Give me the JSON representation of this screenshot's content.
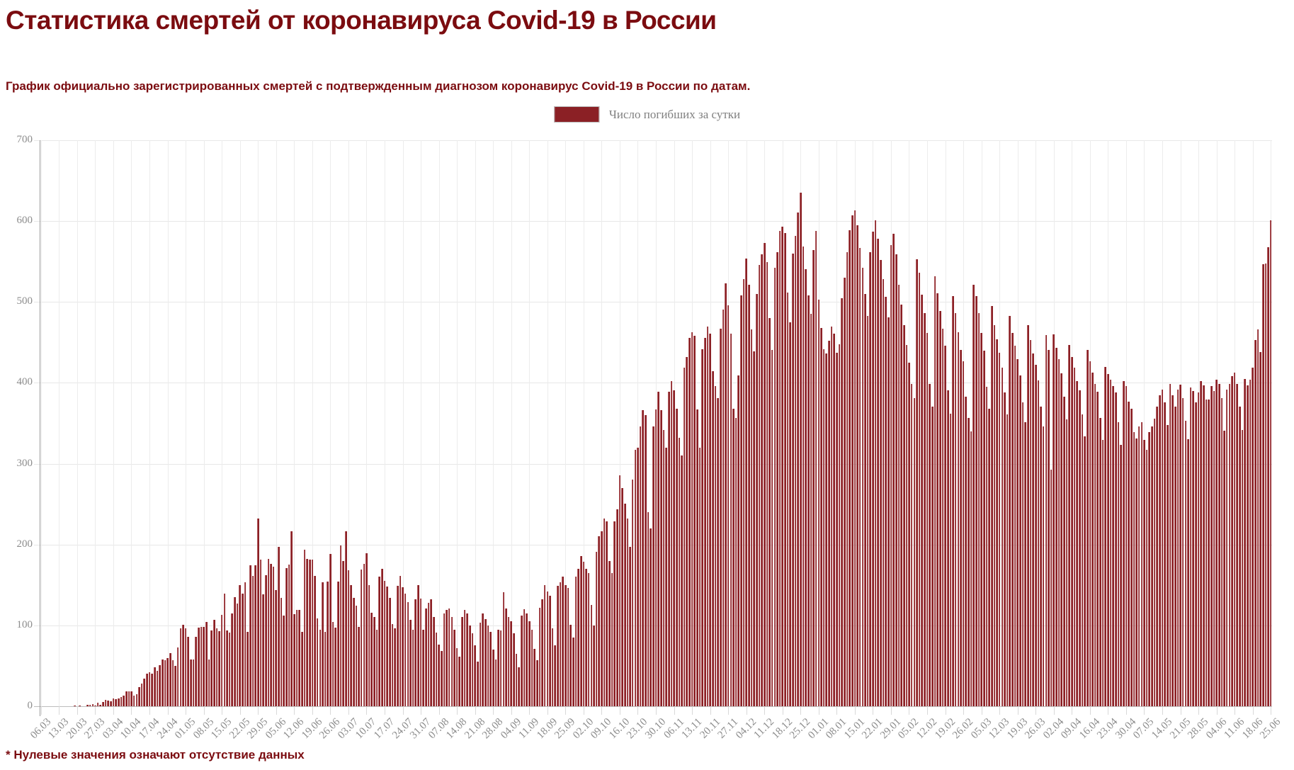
{
  "page": {
    "title": "Статистика смертей от коронавируса Covid-19 в России",
    "subtitle": "График официально зарегистрированных смертей с подтвержденным диагнозом коронавирус Covid-19 в России по датам.",
    "footnote": "* Нулевые значения означают отсутствие данных"
  },
  "legend": {
    "label": "Число погибших за сутки"
  },
  "colors": {
    "accent_text": "#7b0c10",
    "bar": "#8b2025",
    "bar_highlight": "#b05a5e",
    "axis_text": "#8c8c8c",
    "legend_text": "#808080",
    "grid": "#e7e7e7",
    "axis_line": "#9a9a9a",
    "zero_line": "#bdbdbd"
  },
  "chart_data": {
    "type": "bar",
    "title": "Статистика смертей от коронавируса Covid-19 в России",
    "series_name": "Число погибших за сутки",
    "legend_position": "top-center",
    "grid": true,
    "start_date": "06.03.2020",
    "end_date": "25.06.2021",
    "ylim": [
      0,
      700
    ],
    "y_ticks": [
      0,
      100,
      200,
      300,
      400,
      500,
      600,
      700
    ],
    "x_tick_interval_days": 7,
    "x_tick_labels": [
      "06.03",
      "13.03",
      "20.03",
      "27.03",
      "03.04",
      "10.04",
      "17.04",
      "24.04",
      "01.05",
      "08.05",
      "15.05",
      "22.05",
      "29.05",
      "05.06",
      "12.06",
      "19.06",
      "26.06",
      "03.07",
      "10.07",
      "17.07",
      "24.07",
      "31.07",
      "07.08",
      "14.08",
      "21.08",
      "28.08",
      "04.09",
      "11.09",
      "18.09",
      "25.09",
      "02.10",
      "09.10",
      "16.10",
      "23.10",
      "30.10",
      "06.11",
      "13.11",
      "20.11",
      "27.11",
      "04.12",
      "11.12",
      "18.12",
      "25.12",
      "01.01",
      "08.01",
      "15.01",
      "22.01",
      "29.01",
      "05.02",
      "12.02",
      "19.02",
      "26.02",
      "05.03",
      "12.03",
      "19.03",
      "26.03",
      "02.04",
      "09.04",
      "16.04",
      "23.04",
      "30.04",
      "07.05",
      "14.05",
      "21.05",
      "28.05",
      "04.06",
      "11.06",
      "18.06",
      "25.06"
    ],
    "values": [
      0,
      0,
      0,
      0,
      0,
      0,
      0,
      0,
      0,
      0,
      0,
      0,
      0,
      1,
      0,
      1,
      0,
      0,
      2,
      2,
      3,
      1,
      4,
      2,
      5,
      8,
      7,
      6,
      10,
      9,
      10,
      11,
      13,
      18,
      18,
      18,
      13,
      15,
      24,
      28,
      34,
      40,
      42,
      40,
      48,
      44,
      51,
      58,
      57,
      60,
      66,
      57,
      50,
      73,
      96,
      101,
      96,
      86,
      58,
      58,
      86,
      97,
      98,
      98,
      104,
      58,
      94,
      107,
      96,
      93,
      113,
      139,
      94,
      91,
      115,
      135,
      127,
      150,
      139,
      153,
      92,
      174,
      161,
      174,
      232,
      181,
      138,
      162,
      182,
      176,
      173,
      144,
      197,
      134,
      112,
      171,
      175,
      216,
      114,
      119,
      119,
      92,
      194,
      182,
      181,
      181,
      161,
      109,
      95,
      153,
      92,
      154,
      188,
      104,
      97,
      154,
      199,
      180,
      216,
      168,
      150,
      134,
      124,
      98,
      169,
      176,
      189,
      150,
      116,
      110,
      95,
      160,
      170,
      155,
      148,
      134,
      102,
      96,
      149,
      161,
      147,
      139,
      129,
      107,
      95,
      132,
      150,
      133,
      95,
      121,
      128,
      132,
      110,
      91,
      76,
      68,
      115,
      119,
      121,
      110,
      95,
      72,
      61,
      110,
      119,
      115,
      100,
      90,
      75,
      55,
      103,
      115,
      108,
      100,
      92,
      70,
      58,
      95,
      94,
      141,
      121,
      110,
      105,
      90,
      65,
      48,
      112,
      120,
      115,
      105,
      95,
      71,
      57,
      122,
      132,
      150,
      142,
      137,
      96,
      75,
      149,
      153,
      160,
      150,
      146,
      101,
      85,
      160,
      170,
      186,
      179,
      170,
      165,
      125,
      100,
      191,
      210,
      216,
      232,
      229,
      180,
      165,
      229,
      244,
      286,
      270,
      251,
      232,
      197,
      280,
      317,
      320,
      346,
      366,
      360,
      240,
      220,
      346,
      367,
      389,
      366,
      342,
      320,
      389,
      402,
      391,
      368,
      332,
      310,
      419,
      432,
      456,
      463,
      458,
      367,
      320,
      442,
      456,
      470,
      461,
      414,
      396,
      381,
      467,
      491,
      523,
      496,
      461,
      368,
      357,
      409,
      508,
      528,
      554,
      521,
      466,
      439,
      510,
      546,
      559,
      573,
      549,
      480,
      441,
      542,
      562,
      588,
      593,
      585,
      512,
      475,
      560,
      582,
      611,
      635,
      569,
      541,
      508,
      485,
      564,
      588,
      503,
      468,
      442,
      436,
      452,
      470,
      461,
      437,
      448,
      505,
      530,
      562,
      589,
      607,
      613,
      595,
      567,
      542,
      510,
      483,
      562,
      587,
      601,
      578,
      552,
      528,
      506,
      481,
      570,
      584,
      559,
      521,
      497,
      471,
      447,
      425,
      399,
      381,
      553,
      536,
      509,
      486,
      462,
      399,
      371,
      532,
      511,
      489,
      467,
      446,
      391,
      362,
      507,
      486,
      463,
      441,
      427,
      383,
      357,
      340,
      521,
      507,
      486,
      462,
      440,
      395,
      368,
      495,
      471,
      454,
      437,
      419,
      388,
      361,
      483,
      462,
      446,
      429,
      409,
      376,
      351,
      471,
      453,
      436,
      422,
      403,
      371,
      346,
      459,
      441,
      293,
      460,
      443,
      429,
      412,
      383,
      355,
      447,
      432,
      419,
      402,
      391,
      361,
      334,
      441,
      427,
      413,
      399,
      389,
      357,
      329,
      420,
      411,
      404,
      396,
      388,
      351,
      323,
      402,
      396,
      377,
      368,
      339,
      331,
      346,
      351,
      329,
      317,
      339,
      346,
      356,
      371,
      385,
      392,
      376,
      348,
      399,
      385,
      371,
      392,
      398,
      381,
      353,
      330,
      394,
      390,
      376,
      388,
      402,
      397,
      379,
      379,
      396,
      390,
      404,
      399,
      381,
      341,
      392,
      399,
      408,
      413,
      399,
      371,
      342,
      405,
      397,
      404,
      419,
      453,
      466,
      438,
      547,
      548,
      568,
      601
    ]
  }
}
